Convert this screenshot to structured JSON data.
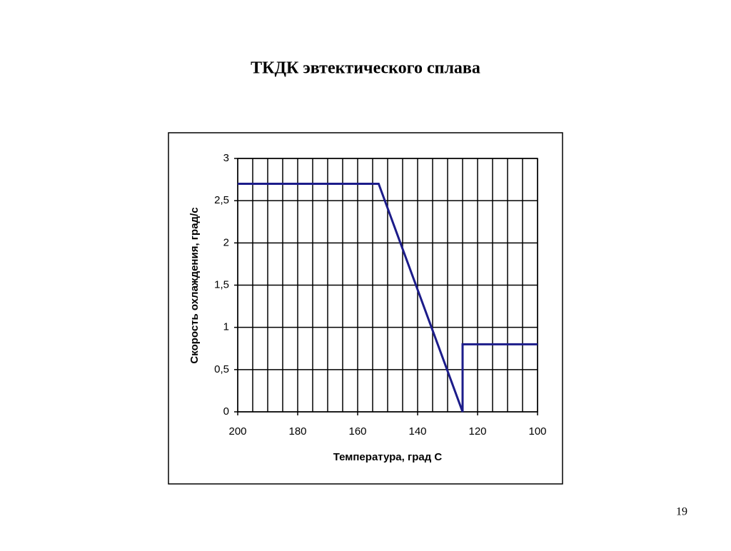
{
  "chart_data": {
    "type": "line",
    "title": "ТКДК эвтектического сплава",
    "x_label": "Температура, град С",
    "y_label": "Скорость охлаждения, град/с",
    "page_number": "19",
    "series": [
      {
        "name": null,
        "color": "#1c1c8a",
        "x": [
          200,
          153,
          125,
          125,
          100
        ],
        "values": [
          2.7,
          2.7,
          0,
          0.8,
          0.8
        ]
      }
    ],
    "xlim": [
      200,
      100
    ],
    "xticks": [
      200,
      180,
      160,
      140,
      120,
      100
    ],
    "x_grid_step": 5,
    "ylim": [
      0,
      3
    ],
    "yticks": [
      0,
      {
        "value": 0.5,
        "label": "0,5"
      },
      1,
      {
        "value": 1.5,
        "label": "1,5"
      },
      2,
      {
        "value": 2.5,
        "label": "2,5"
      },
      3
    ],
    "grid": true
  }
}
